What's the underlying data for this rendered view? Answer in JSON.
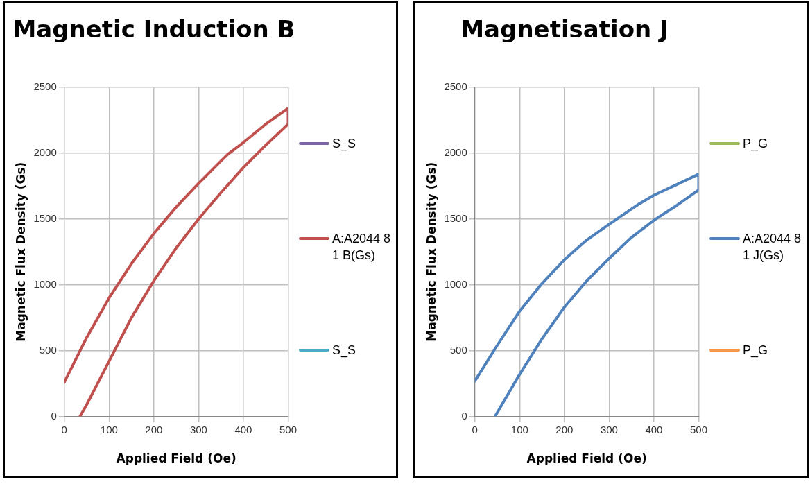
{
  "chart_data": [
    {
      "type": "line",
      "title": "Magnetic Induction B",
      "xlabel": "Applied Field (Oe)",
      "ylabel": "Magnetic Flux Density (Gs)",
      "xlim": [
        0,
        500
      ],
      "xticks": [
        0,
        100,
        200,
        300,
        400,
        500
      ],
      "ylim": [
        0,
        2500
      ],
      "yticks": [
        0,
        500,
        1000,
        1500,
        2000,
        2500
      ],
      "grid": true,
      "legend": "right",
      "marker": "none",
      "line_style": "solid",
      "series": [
        {
          "name": "S_S",
          "color": "#8064a2"
        },
        {
          "name": "A:A2044 8 1 B(Gs)",
          "color": "#c0504d",
          "x": [
            0,
            50,
            100,
            150,
            200,
            250,
            300,
            350,
            365,
            400,
            450,
            500,
            500,
            450,
            400,
            350,
            300,
            250,
            200,
            150,
            100,
            50,
            35
          ],
          "values": [
            260,
            600,
            900,
            1160,
            1390,
            1590,
            1770,
            1940,
            1990,
            2080,
            2220,
            2340,
            2220,
            2060,
            1890,
            1700,
            1500,
            1280,
            1030,
            750,
            420,
            90,
            0
          ]
        },
        {
          "name": "S_S",
          "color": "#4bacc6"
        }
      ]
    },
    {
      "type": "line",
      "title": "Magnetisation J",
      "xlabel": "Applied Field (Oe)",
      "ylabel": "Magnetic Flux Density (Gs)",
      "xlim": [
        0,
        500
      ],
      "xticks": [
        0,
        100,
        200,
        300,
        400,
        500
      ],
      "ylim": [
        0,
        2500
      ],
      "yticks": [
        0,
        500,
        1000,
        1500,
        2000,
        2500
      ],
      "grid": true,
      "legend": "right",
      "marker": "none",
      "line_style": "solid",
      "series": [
        {
          "name": "P_G",
          "color": "#9bbb59"
        },
        {
          "name": "A:A2044 8 1 J(Gs)",
          "color": "#4f81bd",
          "x": [
            0,
            50,
            100,
            150,
            200,
            250,
            300,
            365,
            400,
            450,
            500,
            500,
            450,
            400,
            350,
            300,
            250,
            200,
            150,
            100,
            45
          ],
          "values": [
            270,
            540,
            800,
            1010,
            1190,
            1340,
            1460,
            1610,
            1680,
            1760,
            1840,
            1720,
            1600,
            1490,
            1360,
            1200,
            1030,
            830,
            590,
            320,
            0
          ]
        },
        {
          "name": "P_G",
          "color": "#f79646"
        }
      ]
    }
  ]
}
